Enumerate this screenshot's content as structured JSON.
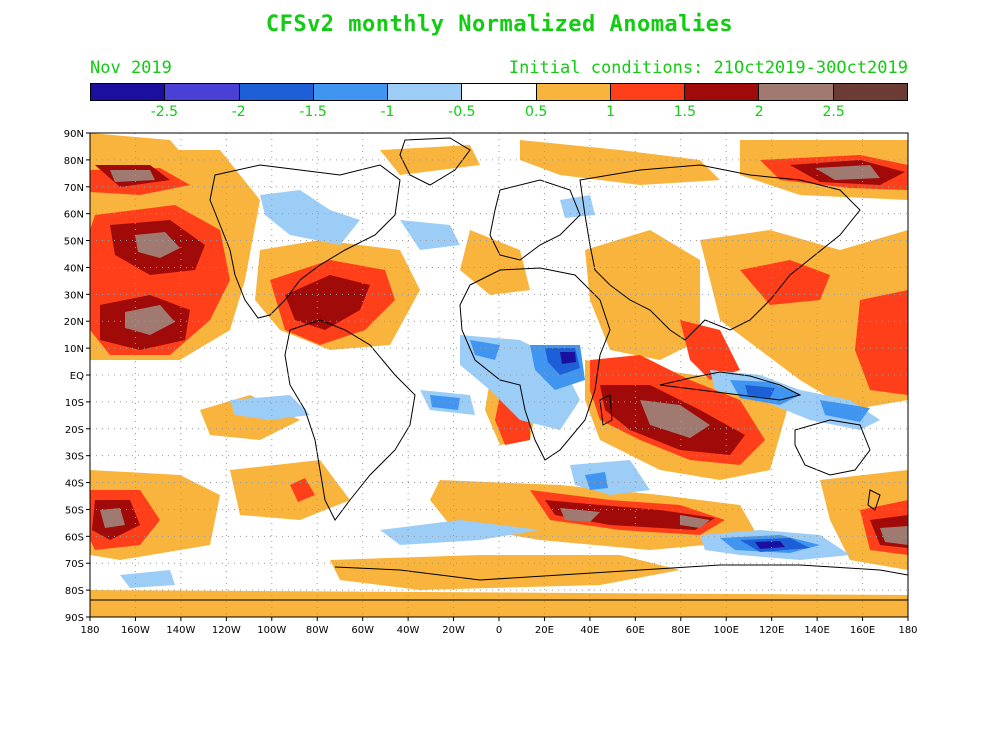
{
  "title": "CFSv2 monthly Normalized Anomalies",
  "subtitle_left": "Nov 2019",
  "subtitle_right": "Initial conditions: 21Oct2019-30Oct2019",
  "colorbar": {
    "colors": [
      "#1a0f9e",
      "#4b40d6",
      "#1d5fd6",
      "#3f95ef",
      "#9ccdf7",
      "#ffffff",
      "#f8b43c",
      "#ff3f1a",
      "#a00a08",
      "#a07a70",
      "#6a3c34"
    ],
    "labels": [
      "-2.5",
      "-2",
      "-1.5",
      "-1",
      "-0.5",
      "0.5",
      "1",
      "1.5",
      "2",
      "2.5"
    ]
  },
  "axes": {
    "x_ticks": [
      "180",
      "160W",
      "140W",
      "120W",
      "100W",
      "80W",
      "60W",
      "40W",
      "20W",
      "0",
      "20E",
      "40E",
      "60E",
      "80E",
      "100E",
      "120E",
      "140E",
      "160E",
      "180"
    ],
    "y_ticks": [
      "90N",
      "80N",
      "70N",
      "60N",
      "50N",
      "40N",
      "30N",
      "20N",
      "10N",
      "EQ",
      "10S",
      "20S",
      "30S",
      "40S",
      "50S",
      "60S",
      "70S",
      "80S",
      "90S"
    ]
  },
  "colors": {
    "text_green": "#11cc11",
    "anomaly_pos_1": "#f8b43c",
    "anomaly_pos_2": "#ff3f1a",
    "anomaly_pos_3": "#a00a08",
    "anomaly_pos_4": "#a07a70",
    "anomaly_neg_1": "#9ccdf7",
    "anomaly_neg_2": "#3f95ef",
    "anomaly_neg_3": "#1d5fd6",
    "anomaly_neg_4": "#1a0f9e"
  }
}
